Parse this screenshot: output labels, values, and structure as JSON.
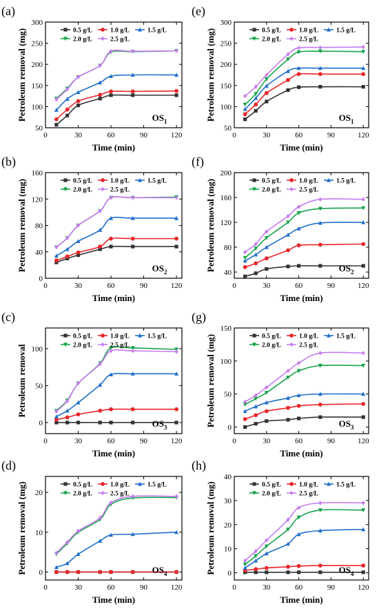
{
  "figure": {
    "legend_labels": [
      "0.5 g/L",
      "1.0 g/L",
      "1.5 g/L",
      "2.0 g/L",
      "2.5 g/L"
    ],
    "series_colors": [
      "#333333",
      "#e8262a",
      "#1f6fc9",
      "#17a34a",
      "#c77df0"
    ],
    "marker_shapes": [
      "square",
      "circle",
      "triangle-up",
      "triangle-down",
      "diamond"
    ]
  },
  "chart_data": [
    {
      "type": "line",
      "panel": "(a)",
      "title": "",
      "xlabel": "Time (min)",
      "ylabel": "Petroleum removal (mg)",
      "oil_label": "OS",
      "oil_sub": "1",
      "xlim": [
        0,
        125
      ],
      "ylim": [
        50,
        300
      ],
      "xticks": [
        0,
        30,
        60,
        90,
        120
      ],
      "yticks": [
        50,
        100,
        150,
        200,
        250,
        300
      ],
      "x": [
        10,
        20,
        30,
        50,
        60,
        80,
        120
      ],
      "series": [
        {
          "name": "0.5 g/L",
          "values": [
            57,
            79,
            103,
            119,
            127,
            127,
            127
          ]
        },
        {
          "name": "1.0 g/L",
          "values": [
            70,
            93,
            113,
            128,
            136,
            136,
            137
          ]
        },
        {
          "name": "1.5 g/L",
          "values": [
            92,
            118,
            134,
            157,
            172,
            175,
            175
          ]
        },
        {
          "name": "2.0 g/L",
          "values": [
            119,
            143,
            170,
            197,
            229,
            230,
            232
          ]
        },
        {
          "name": "2.5 g/L",
          "values": [
            117,
            141,
            170,
            197,
            231,
            231,
            232
          ]
        }
      ]
    },
    {
      "type": "line",
      "panel": "(e)",
      "title": "",
      "xlabel": "Time (min)",
      "ylabel": "Petroleum removal (mg)",
      "oil_label": "OS",
      "oil_sub": "1",
      "xlim": [
        0,
        125
      ],
      "ylim": [
        50,
        300
      ],
      "xticks": [
        0,
        30,
        60,
        90,
        120
      ],
      "yticks": [
        50,
        100,
        150,
        200,
        250,
        300
      ],
      "x": [
        10,
        20,
        30,
        50,
        60,
        80,
        120
      ],
      "series": [
        {
          "name": "0.5 g/L",
          "values": [
            70,
            90,
            112,
            139,
            146,
            147,
            147
          ]
        },
        {
          "name": "1.0 g/L",
          "values": [
            82,
            105,
            132,
            163,
            177,
            177,
            177
          ]
        },
        {
          "name": "1.5 g/L",
          "values": [
            94,
            120,
            149,
            184,
            191,
            191,
            191
          ]
        },
        {
          "name": "2.0 g/L",
          "values": [
            105,
            130,
            165,
            212,
            229,
            231,
            230
          ]
        },
        {
          "name": "2.5 g/L",
          "values": [
            125,
            147,
            175,
            224,
            239,
            240,
            241
          ]
        }
      ]
    },
    {
      "type": "line",
      "panel": "(b)",
      "title": "",
      "xlabel": "Time (min)",
      "ylabel": "Petroleum removal (mg)",
      "oil_label": "OS",
      "oil_sub": "2",
      "xlim": [
        0,
        125
      ],
      "ylim": [
        0,
        160
      ],
      "xticks": [
        0,
        30,
        60,
        90,
        120
      ],
      "yticks": [
        0,
        40,
        80,
        120,
        160
      ],
      "x": [
        10,
        20,
        30,
        50,
        60,
        80,
        120
      ],
      "series": [
        {
          "name": "0.5 g/L",
          "values": [
            24,
            30,
            35,
            44,
            48,
            48,
            48
          ]
        },
        {
          "name": "1.0 g/L",
          "values": [
            27,
            33,
            39,
            48,
            60,
            60,
            60
          ]
        },
        {
          "name": "1.5 g/L",
          "values": [
            34,
            44,
            56,
            73,
            91,
            91,
            91
          ]
        },
        {
          "name": "2.0 g/L",
          "values": [
            47,
            61,
            80,
            102,
            122,
            122,
            123
          ]
        },
        {
          "name": "2.5 g/L",
          "values": [
            47,
            61,
            80,
            102,
            122,
            122,
            122
          ]
        }
      ]
    },
    {
      "type": "line",
      "panel": "(f)",
      "title": "",
      "xlabel": "Time (min)",
      "ylabel": "Petroleum removal (mg)",
      "oil_label": "OS",
      "oil_sub": "2",
      "xlim": [
        0,
        125
      ],
      "ylim": [
        30,
        200
      ],
      "xticks": [
        0,
        30,
        60,
        90,
        120
      ],
      "yticks": [
        40,
        80,
        120,
        160,
        200
      ],
      "x": [
        10,
        20,
        30,
        50,
        60,
        80,
        120
      ],
      "series": [
        {
          "name": "0.5 g/L",
          "values": [
            33,
            38,
            45,
            49,
            50,
            50,
            50
          ]
        },
        {
          "name": "1.0 g/L",
          "values": [
            48,
            54,
            62,
            75,
            83,
            84,
            85
          ]
        },
        {
          "name": "1.5 g/L",
          "values": [
            58,
            68,
            80,
            100,
            110,
            119,
            120
          ]
        },
        {
          "name": "2.0 g/L",
          "values": [
            63,
            78,
            95,
            120,
            135,
            142,
            143
          ]
        },
        {
          "name": "2.5 g/L",
          "values": [
            72,
            85,
            105,
            130,
            145,
            157,
            157
          ]
        }
      ]
    },
    {
      "type": "line",
      "panel": "(c)",
      "title": "",
      "xlabel": "Time (min)",
      "ylabel": "Petroleum removal",
      "oil_label": "OS",
      "oil_sub": "3",
      "xlim": [
        0,
        125
      ],
      "ylim": [
        -15,
        128
      ],
      "xticks": [
        0,
        30,
        60,
        90,
        120
      ],
      "yticks": [
        0,
        50,
        100
      ],
      "x": [
        10,
        20,
        30,
        50,
        60,
        80,
        120
      ],
      "series": [
        {
          "name": "0.5 g/L",
          "values": [
            0,
            0,
            0,
            0,
            0,
            0,
            0
          ]
        },
        {
          "name": "1.0 g/L",
          "values": [
            4,
            7,
            11,
            16,
            18,
            18,
            18
          ]
        },
        {
          "name": "1.5 g/L",
          "values": [
            8,
            16,
            27,
            51,
            65,
            66,
            66
          ]
        },
        {
          "name": "2.0 g/L",
          "values": [
            16,
            30,
            53,
            80,
            101,
            101,
            99
          ]
        },
        {
          "name": "2.5 g/L",
          "values": [
            15,
            29,
            53,
            79,
            97,
            97,
            96
          ]
        }
      ]
    },
    {
      "type": "line",
      "panel": "(g)",
      "title": "",
      "xlabel": "Time (min)",
      "ylabel": "Petroleum removal (mg)",
      "oil_label": "OS",
      "oil_sub": "3",
      "xlim": [
        0,
        125
      ],
      "ylim": [
        -10,
        150
      ],
      "xticks": [
        0,
        30,
        60,
        90,
        120
      ],
      "yticks": [
        0,
        50,
        100,
        150
      ],
      "x": [
        10,
        20,
        30,
        50,
        60,
        80,
        120
      ],
      "series": [
        {
          "name": "0.5 g/L",
          "values": [
            0,
            5,
            9,
            11,
            13,
            15,
            15
          ]
        },
        {
          "name": "1.0 g/L",
          "values": [
            12,
            18,
            24,
            29,
            32,
            34,
            35
          ]
        },
        {
          "name": "1.5 g/L",
          "values": [
            24,
            31,
            37,
            44,
            48,
            50,
            50
          ]
        },
        {
          "name": "2.0 g/L",
          "values": [
            34,
            43,
            52,
            75,
            85,
            93,
            93
          ]
        },
        {
          "name": "2.5 g/L",
          "values": [
            38,
            48,
            60,
            85,
            97,
            112,
            112
          ]
        }
      ]
    },
    {
      "type": "line",
      "panel": "(d)",
      "title": "",
      "xlabel": "Time (min)",
      "ylabel": "Petroleum removal (mg)",
      "oil_label": "OS",
      "oil_sub": "4",
      "xlim": [
        0,
        125
      ],
      "ylim": [
        -2,
        24
      ],
      "xticks": [
        0,
        30,
        60,
        90,
        120
      ],
      "yticks": [
        0,
        10,
        20
      ],
      "x": [
        10,
        20,
        30,
        50,
        60,
        80,
        120
      ],
      "series": [
        {
          "name": "0.5 g/L",
          "values": [
            0,
            0,
            0,
            0,
            0,
            0,
            0
          ]
        },
        {
          "name": "1.0 g/L",
          "values": [
            0,
            0,
            0,
            0,
            0,
            0,
            0
          ]
        },
        {
          "name": "1.5 g/L",
          "values": [
            1.2,
            2.2,
            4.5,
            7.8,
            9.3,
            9.5,
            10
          ]
        },
        {
          "name": "2.0 g/L",
          "values": [
            4.5,
            7.2,
            10.0,
            13.2,
            17.0,
            18.6,
            18.7
          ]
        },
        {
          "name": "2.5 g/L",
          "values": [
            4.8,
            7.5,
            10.3,
            13.6,
            17.4,
            19.0,
            19.0
          ]
        }
      ]
    },
    {
      "type": "line",
      "panel": "(h)",
      "title": "",
      "xlabel": "Time (min)",
      "ylabel": "Petroleum removal (mg)",
      "oil_label": "OS",
      "oil_sub": "4",
      "xlim": [
        0,
        125
      ],
      "ylim": [
        -3,
        40
      ],
      "xticks": [
        0,
        30,
        60,
        90,
        120
      ],
      "yticks": [
        0,
        10,
        20,
        30,
        40
      ],
      "x": [
        10,
        20,
        30,
        50,
        60,
        80,
        120
      ],
      "series": [
        {
          "name": "0.5 g/L",
          "values": [
            0.2,
            0.2,
            0.2,
            0.2,
            0.2,
            0.2,
            0.2
          ]
        },
        {
          "name": "1.0 g/L",
          "values": [
            1,
            1.5,
            2,
            2.5,
            2.8,
            3,
            3
          ]
        },
        {
          "name": "1.5 g/L",
          "values": [
            2,
            5,
            8,
            12,
            16,
            17.5,
            18
          ]
        },
        {
          "name": "2.0 g/L",
          "values": [
            3.5,
            7,
            11,
            18,
            23,
            26,
            26
          ]
        },
        {
          "name": "2.5 g/L",
          "values": [
            5,
            9,
            13.5,
            22,
            27,
            29,
            29
          ]
        }
      ]
    }
  ]
}
